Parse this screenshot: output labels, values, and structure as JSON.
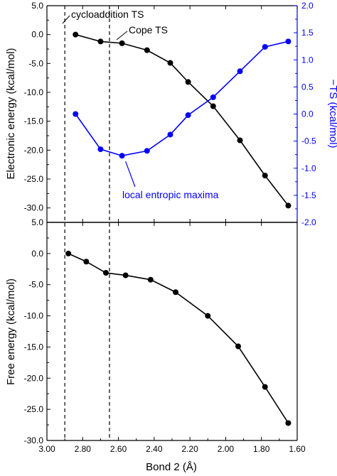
{
  "chart_data": [
    {
      "type": "line",
      "panel": "top",
      "xlabel": "",
      "ylabel": "Electronic energy (kcal/mol)",
      "ylabel_right": "−TS (kcal/mol)",
      "xlim": [
        3.0,
        1.6
      ],
      "ylim": [
        -32.5,
        5.0
      ],
      "ylim_right": [
        -2.0,
        2.0
      ],
      "yticks": [
        5.0,
        0.0,
        -5.0,
        -10.0,
        -15.0,
        -20.0,
        -25.0,
        -30.0
      ],
      "yticks_right": [
        2.0,
        1.5,
        1.0,
        0.5,
        0.0,
        -0.5,
        -1.0,
        -1.5,
        -2.0
      ],
      "ytick_labels": [
        "5.0",
        "0.0",
        "-5.0",
        "-10.0",
        "-15.0",
        "-20.0",
        "-25.0",
        "-30.0"
      ],
      "ytick_labels_right": [
        "2.0",
        "1.5",
        "1.0",
        "0.5",
        "0.0",
        "-0.5",
        "-1.0",
        "-1.5",
        "-2.0"
      ],
      "grid": false,
      "series": [
        {
          "name": "",
          "axis": "left",
          "color": "#000000",
          "x": [
            2.84,
            2.7,
            2.58,
            2.44,
            2.31,
            2.21,
            2.07,
            1.92,
            1.78,
            1.65
          ],
          "y": [
            0.0,
            -1.2,
            -1.5,
            -2.7,
            -4.9,
            -8.2,
            -12.4,
            -18.3,
            -24.4,
            -29.6
          ]
        },
        {
          "name": "",
          "axis": "right",
          "color": "#0000ff",
          "x": [
            2.84,
            2.7,
            2.58,
            2.44,
            2.31,
            2.21,
            2.07,
            1.92,
            1.78,
            1.65
          ],
          "y": [
            0.0,
            -0.65,
            -0.77,
            -0.68,
            -0.38,
            -0.02,
            0.31,
            0.79,
            1.24,
            1.34
          ]
        }
      ],
      "vlines": [
        2.9,
        2.65
      ],
      "annotations": [
        "cycloaddition TS",
        "Cope TS",
        "local entropic maxima"
      ]
    },
    {
      "type": "line",
      "panel": "bottom",
      "xlabel": "Bond 2 (Å)",
      "ylabel": "Free energy (kcal/mol)",
      "xlim": [
        3.0,
        1.6
      ],
      "ylim": [
        -30.0,
        5.0
      ],
      "xticks": [
        3.0,
        2.8,
        2.6,
        2.4,
        2.2,
        2.0,
        1.8,
        1.6
      ],
      "xtick_labels": [
        "3.00",
        "2.80",
        "2.60",
        "2.40",
        "2.20",
        "2.00",
        "1.80",
        "1.60"
      ],
      "yticks": [
        5.0,
        0.0,
        -5.0,
        -10.0,
        -15.0,
        -20.0,
        -25.0,
        -30.0
      ],
      "ytick_labels": [
        "5.0",
        "0.0",
        "-5.0",
        "-10.0",
        "-15.0",
        "-20.0",
        "-25.0",
        "-30.0"
      ],
      "grid": false,
      "series": [
        {
          "name": "",
          "color": "#000000",
          "x": [
            2.88,
            2.78,
            2.67,
            2.56,
            2.42,
            2.28,
            2.1,
            1.93,
            1.78,
            1.65
          ],
          "y": [
            0.0,
            -1.3,
            -3.1,
            -3.5,
            -4.2,
            -6.2,
            -10.0,
            -14.9,
            -21.4,
            -27.2
          ]
        }
      ],
      "vlines": [
        2.9,
        2.65
      ]
    }
  ]
}
